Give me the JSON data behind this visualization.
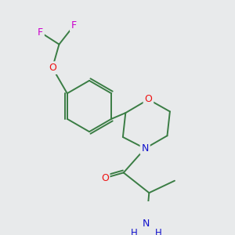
{
  "background_color": "#e8eaeb",
  "bond_color": "#3a7d44",
  "atom_colors": {
    "F": "#cc00cc",
    "O": "#ee1111",
    "N": "#1111cc",
    "C": "#3a7d44"
  },
  "figsize": [
    3.0,
    3.0
  ],
  "dpi": 100
}
